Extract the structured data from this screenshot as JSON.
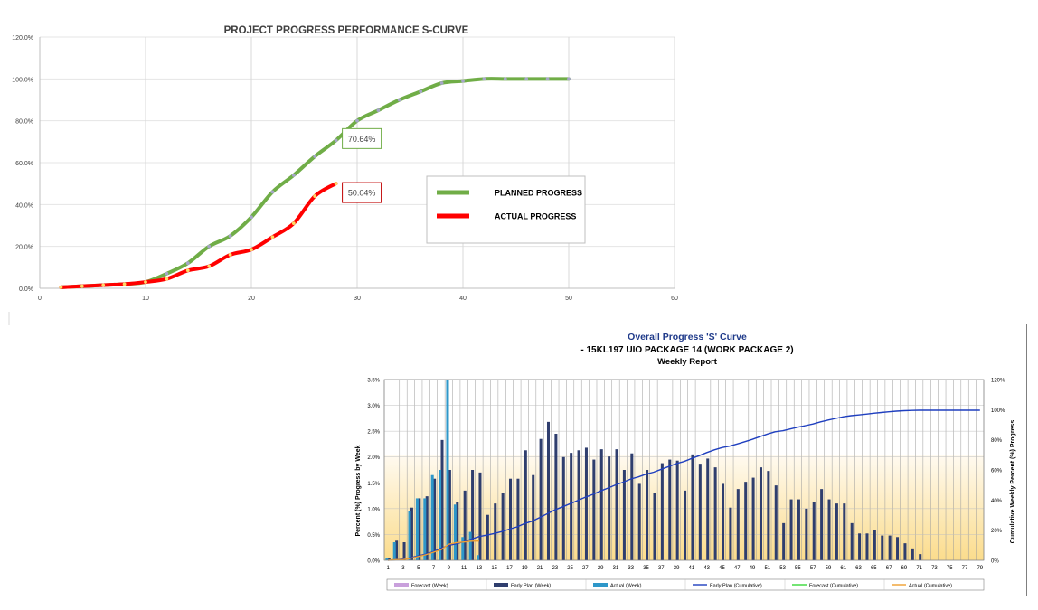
{
  "chart_data": [
    {
      "type": "line",
      "title": "PROJECT PROGRESS PERFORMANCE S-CURVE",
      "xlim": [
        0,
        60
      ],
      "ylim": [
        0,
        1.2
      ],
      "x_ticks": [
        "0",
        "10",
        "20",
        "30",
        "40",
        "50",
        "60"
      ],
      "y_ticks": [
        "0.0%",
        "20.0%",
        "40.0%",
        "60.0%",
        "80.0%",
        "100.0%",
        "120.0%"
      ],
      "grid": "vertical",
      "legend_position": "center-right",
      "series": [
        {
          "name": "PLANNED PROGRESS",
          "color": "#70ad47",
          "marker_color": "#a6a6c8",
          "points": [
            [
              2,
              0.005
            ],
            [
              4,
              0.01
            ],
            [
              6,
              0.015
            ],
            [
              8,
              0.02
            ],
            [
              10,
              0.03
            ],
            [
              12,
              0.07
            ],
            [
              14,
              0.12
            ],
            [
              16,
              0.2
            ],
            [
              18,
              0.25
            ],
            [
              20,
              0.34
            ],
            [
              22,
              0.46
            ],
            [
              24,
              0.54
            ],
            [
              26,
              0.63
            ],
            [
              28,
              0.7064
            ],
            [
              30,
              0.8
            ],
            [
              32,
              0.85
            ],
            [
              34,
              0.9
            ],
            [
              36,
              0.94
            ],
            [
              38,
              0.98
            ],
            [
              40,
              0.99
            ],
            [
              42,
              1.0
            ],
            [
              44,
              1.0
            ],
            [
              46,
              1.0
            ],
            [
              48,
              1.0
            ],
            [
              50,
              1.0
            ]
          ]
        },
        {
          "name": "ACTUAL PROGRESS",
          "color": "#ff0000",
          "marker_color": "#ffd966",
          "points": [
            [
              2,
              0.005
            ],
            [
              4,
              0.01
            ],
            [
              6,
              0.015
            ],
            [
              8,
              0.02
            ],
            [
              10,
              0.03
            ],
            [
              12,
              0.045
            ],
            [
              14,
              0.085
            ],
            [
              16,
              0.105
            ],
            [
              18,
              0.16
            ],
            [
              20,
              0.185
            ],
            [
              22,
              0.245
            ],
            [
              24,
              0.31
            ],
            [
              26,
              0.44
            ],
            [
              28,
              0.5004
            ]
          ]
        }
      ],
      "annotations": [
        {
          "text": "70.64%",
          "series": 0,
          "x": 28,
          "border": "#70ad47"
        },
        {
          "text": "50.04%",
          "series": 1,
          "x": 28,
          "border": "#c00000"
        }
      ]
    },
    {
      "type": "bar",
      "title": "Overall Progress 'S' Curve",
      "subtitle": "- 15KL197  UIO PACKAGE 14 (WORK PACKAGE 2)",
      "subtitle2": "Weekly Report",
      "ylabel": "Percent (%) Progress by Week",
      "y2label": "Cumulative Weekly Percent (%) Progress",
      "ylim": [
        0,
        0.035
      ],
      "y2lim": [
        0,
        1.2
      ],
      "y_ticks": [
        "0.0%",
        "0.5%",
        "1.0%",
        "1.5%",
        "2.0%",
        "2.5%",
        "3.0%",
        "3.5%"
      ],
      "y2_ticks": [
        "0%",
        "20%",
        "40%",
        "60%",
        "80%",
        "100%",
        "120%"
      ],
      "x_ticks": [
        "1",
        "3",
        "5",
        "7",
        "9",
        "11",
        "13",
        "15",
        "17",
        "19",
        "21",
        "23",
        "25",
        "27",
        "29",
        "31",
        "33",
        "35",
        "37",
        "39",
        "41",
        "43",
        "45",
        "47",
        "49",
        "51",
        "53",
        "55",
        "57",
        "59",
        "61",
        "63",
        "65",
        "67",
        "69",
        "71",
        "73",
        "75",
        "77",
        "79"
      ],
      "weeks": 79,
      "colors": {
        "forecast_week": "#c9a0dc",
        "early_plan_week": "#2f3e6e",
        "actual_week": "#2e97c9",
        "early_plan_cum": "#1f3fbf",
        "forecast_cum": "#39d839",
        "actual_cum": "#f0a030",
        "title": "#1f3a8a",
        "background_band": "#fbe9b4"
      },
      "early_plan_week": [
        0.0005,
        0.0038,
        0.0035,
        0.0102,
        0.012,
        0.0124,
        0.0158,
        0.0233,
        0.0175,
        0.0112,
        0.0135,
        0.0175,
        0.017,
        0.0088,
        0.011,
        0.013,
        0.0158,
        0.0158,
        0.0213,
        0.0165,
        0.0235,
        0.0268,
        0.0245,
        0.02,
        0.0208,
        0.0213,
        0.0218,
        0.0195,
        0.0215,
        0.0201,
        0.0215,
        0.0175,
        0.0207,
        0.0148,
        0.0175,
        0.013,
        0.0188,
        0.0195,
        0.0193,
        0.0135,
        0.0205,
        0.0187,
        0.0197,
        0.018,
        0.0148,
        0.0102,
        0.0138,
        0.0152,
        0.016,
        0.018,
        0.0173,
        0.0145,
        0.0072,
        0.0118,
        0.0118,
        0.01,
        0.0113,
        0.0138,
        0.0118,
        0.011,
        0.011,
        0.0072,
        0.0052,
        0.0052,
        0.0058,
        0.0048,
        0.0048,
        0.0045,
        0.0033,
        0.0023,
        0.0012,
        0,
        0,
        0,
        0,
        0,
        0,
        0,
        0
      ],
      "actual_week": [
        0.0005,
        0.0035,
        0,
        0.0095,
        0.012,
        0.012,
        0.0165,
        0.0175,
        0.035,
        0.0108,
        0.0045,
        0.0055,
        0.001
      ],
      "early_plan_cum": [
        0.0005,
        0.004,
        0.0075,
        0.018,
        0.03,
        0.042,
        0.058,
        0.081,
        0.099,
        0.11,
        0.124,
        0.141,
        0.158,
        0.167,
        0.178,
        0.191,
        0.207,
        0.222,
        0.244,
        0.26,
        0.284,
        0.31,
        0.335,
        0.355,
        0.376,
        0.397,
        0.419,
        0.438,
        0.46,
        0.48,
        0.501,
        0.519,
        0.54,
        0.554,
        0.572,
        0.585,
        0.604,
        0.623,
        0.642,
        0.656,
        0.676,
        0.695,
        0.715,
        0.733,
        0.748,
        0.758,
        0.772,
        0.787,
        0.803,
        0.821,
        0.838,
        0.853,
        0.86,
        0.872,
        0.884,
        0.894,
        0.905,
        0.919,
        0.931,
        0.942,
        0.953,
        0.96,
        0.965,
        0.97,
        0.976,
        0.981,
        0.986,
        0.99,
        0.993,
        0.995,
        0.996,
        0.996,
        0.996,
        0.996,
        0.996,
        0.996,
        0.996,
        0.996,
        0.996
      ],
      "actual_cum": [
        0.0005,
        0.004,
        0.004,
        0.0135,
        0.0255,
        0.0375,
        0.054,
        0.0715,
        0.1065,
        0.1173,
        0.1218,
        0.1273,
        0.1283
      ],
      "legend": [
        "Forecast (Week)",
        "Early Plan (Week)",
        "Actual (Week)",
        "Early Plan (Cumulative)",
        "Forecast (Cumulative)",
        "Actual (Cumulative)"
      ]
    }
  ]
}
